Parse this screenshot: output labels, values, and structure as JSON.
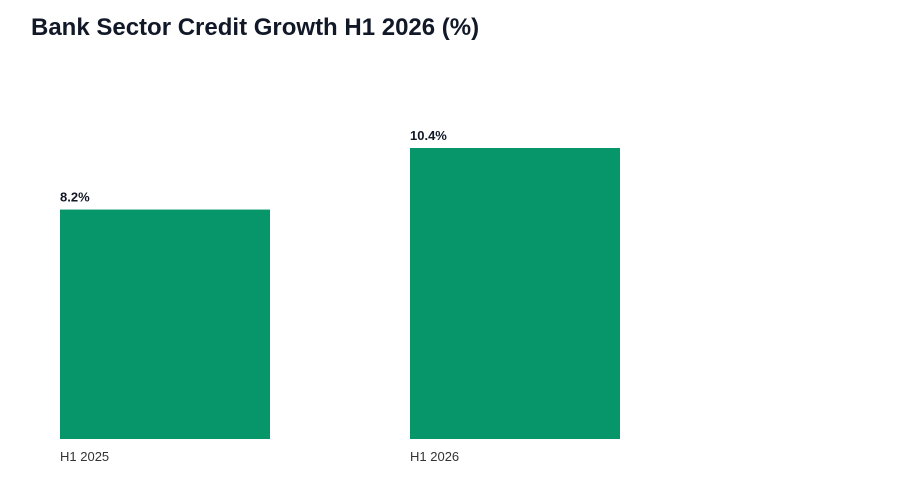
{
  "chart_data": {
    "type": "bar",
    "title": "Bank Sector Credit Growth H1 2026 (%)",
    "categories": [
      "H1 2025",
      "H1 2026"
    ],
    "values": [
      8.2,
      10.4
    ],
    "value_labels": [
      "8.2%",
      "10.4%"
    ],
    "xlabel": "",
    "ylabel": "",
    "ylim": [
      0,
      10.4
    ],
    "grid": false,
    "legend": "none",
    "bar_color": "#06966A"
  }
}
